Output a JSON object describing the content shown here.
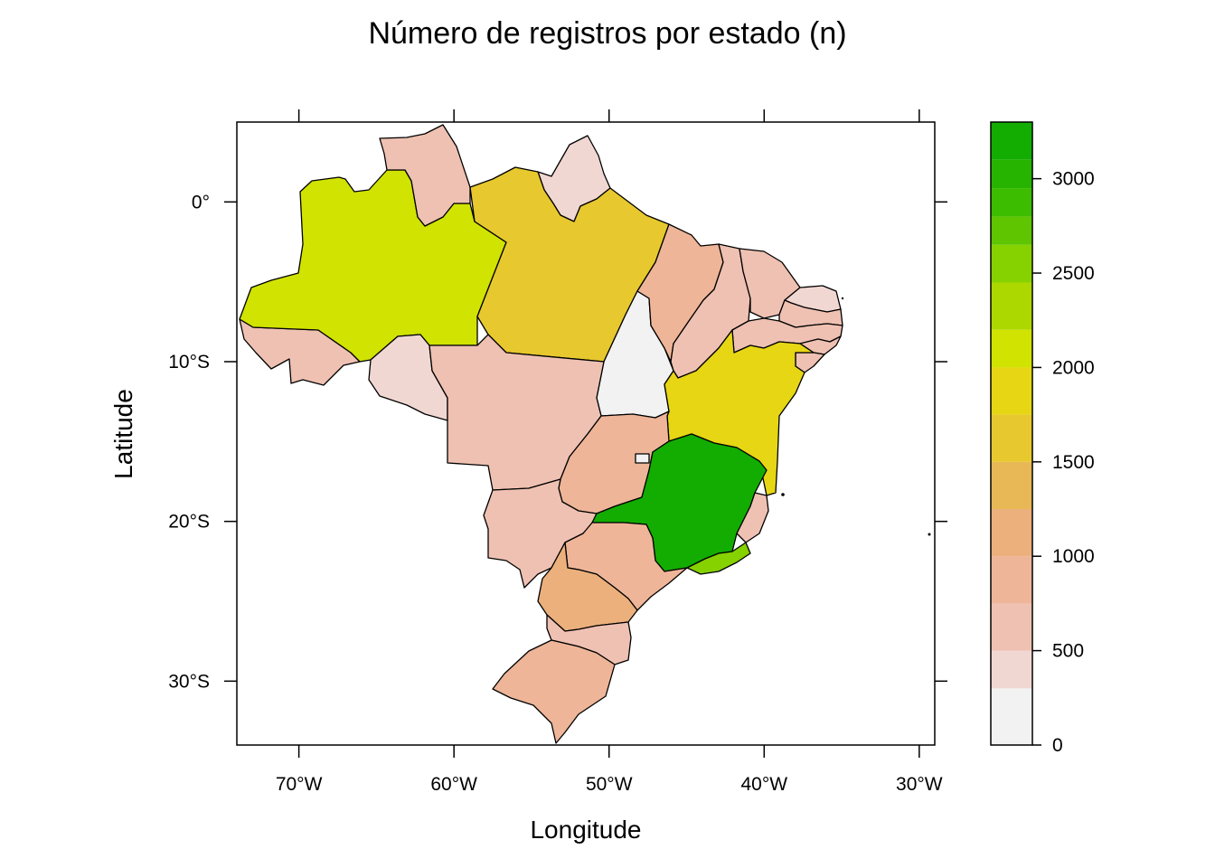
{
  "chart_data": {
    "type": "choropleth-map",
    "title": "Número de registros por estado (n)",
    "xlabel": "Longitude",
    "ylabel": "Latitude",
    "xlim": [
      -74,
      -29
    ],
    "ylim": [
      -34,
      5
    ],
    "x_ticks": [
      {
        "value": -70,
        "label": "70°W"
      },
      {
        "value": -60,
        "label": "60°W"
      },
      {
        "value": -50,
        "label": "50°W"
      },
      {
        "value": -40,
        "label": "40°W"
      },
      {
        "value": -30,
        "label": "30°W"
      }
    ],
    "y_ticks": [
      {
        "value": 0,
        "label": "0°"
      },
      {
        "value": -10,
        "label": "10°S"
      },
      {
        "value": -20,
        "label": "20°S"
      },
      {
        "value": -30,
        "label": "30°S"
      }
    ],
    "colorbar": {
      "range": [
        0,
        3300
      ],
      "breaks": [
        0,
        300,
        500,
        750,
        1000,
        1250,
        1500,
        1750,
        2000,
        2200,
        2450,
        2650,
        2800,
        2950,
        3100,
        3300
      ],
      "colors": [
        "#f2f2f2",
        "#f1d7d2",
        "#efc1b2",
        "#eeb598",
        "#ecb07c",
        "#e8b856",
        "#e7c82e",
        "#e6d614",
        "#d1e300",
        "#acd800",
        "#86d100",
        "#5ec500",
        "#3dbd00",
        "#26b400",
        "#12ad00",
        "#00a600"
      ],
      "ticks": [
        0,
        500,
        1000,
        1500,
        2000,
        2500,
        3000
      ],
      "tick_labels": [
        "0",
        "500",
        "1000",
        "1500",
        "2000",
        "2500",
        "3000"
      ]
    },
    "states": [
      {
        "name": "AC",
        "value": 600
      },
      {
        "name": "AM",
        "value": 2050
      },
      {
        "name": "RR",
        "value": 600
      },
      {
        "name": "AP",
        "value": 350
      },
      {
        "name": "PA",
        "value": 1600
      },
      {
        "name": "MA",
        "value": 850
      },
      {
        "name": "PI",
        "value": 650
      },
      {
        "name": "CE",
        "value": 600
      },
      {
        "name": "RN",
        "value": 350
      },
      {
        "name": "PB",
        "value": 600
      },
      {
        "name": "PE",
        "value": 600
      },
      {
        "name": "AL",
        "value": 600
      },
      {
        "name": "SE",
        "value": 600
      },
      {
        "name": "BA",
        "value": 1900
      },
      {
        "name": "TO",
        "value": 0
      },
      {
        "name": "RO",
        "value": 350
      },
      {
        "name": "MT",
        "value": 600
      },
      {
        "name": "MS",
        "value": 600
      },
      {
        "name": "GO",
        "value": 850
      },
      {
        "name": "DF",
        "value": 0
      },
      {
        "name": "MG",
        "value": 3250
      },
      {
        "name": "ES",
        "value": 600
      },
      {
        "name": "RJ",
        "value": 2550
      },
      {
        "name": "SP",
        "value": 850
      },
      {
        "name": "PR",
        "value": 1100
      },
      {
        "name": "SC",
        "value": 600
      },
      {
        "name": "RS",
        "value": 850
      }
    ]
  }
}
